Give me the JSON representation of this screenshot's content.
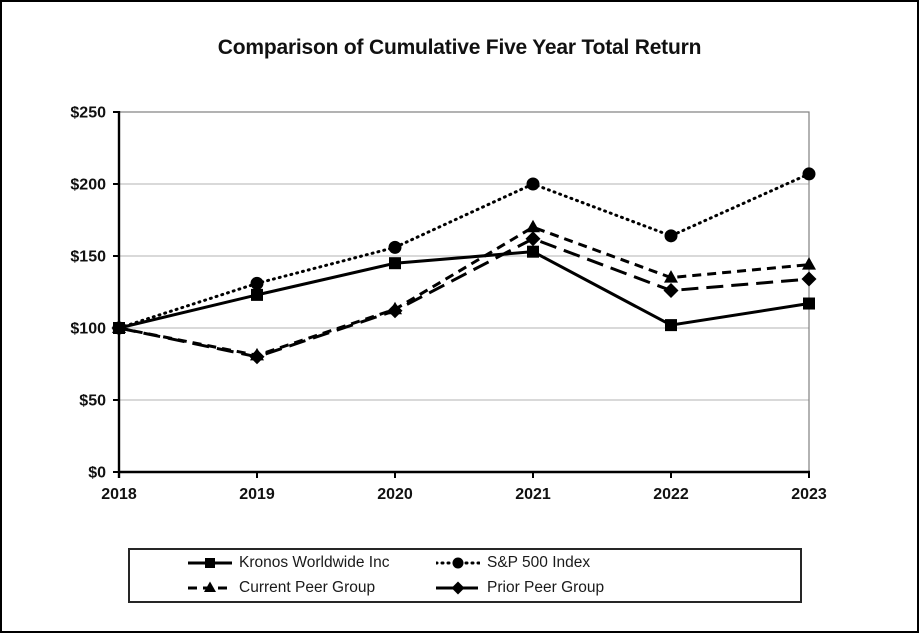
{
  "title": "Comparison of Cumulative Five Year Total Return",
  "chart_data": {
    "type": "line",
    "title": "Comparison of Cumulative Five Year Total Return",
    "categories": [
      "2018",
      "2019",
      "2020",
      "2021",
      "2022",
      "2023"
    ],
    "series": [
      {
        "name": "Kronos Worldwide Inc",
        "marker": "square",
        "line_style": "solid",
        "values": [
          100,
          123,
          145,
          153,
          102,
          117
        ]
      },
      {
        "name": "S&P 500 Index",
        "marker": "circle",
        "line_style": "dotted",
        "values": [
          100,
          131,
          156,
          200,
          164,
          207
        ]
      },
      {
        "name": "Current Peer Group",
        "marker": "triangle",
        "line_style": "dashed",
        "values": [
          100,
          81,
          113,
          170,
          135,
          144
        ]
      },
      {
        "name": "Prior Peer Group",
        "marker": "diamond",
        "line_style": "longdash",
        "values": [
          100,
          80,
          112,
          162,
          126,
          134
        ]
      }
    ],
    "ylim": [
      0,
      250
    ],
    "ytick_step": 50,
    "ytick_labels": [
      "$0",
      "$50",
      "$100",
      "$150",
      "$200",
      "$250"
    ],
    "xlabel": "",
    "ylabel": "",
    "grid": true,
    "legend_position": "bottom"
  },
  "colors": {
    "series": "#000000",
    "axis": "#000000",
    "plot_border": "#808080",
    "gridline": "#b3b3b3",
    "text": "#111111",
    "background": "#ffffff"
  }
}
